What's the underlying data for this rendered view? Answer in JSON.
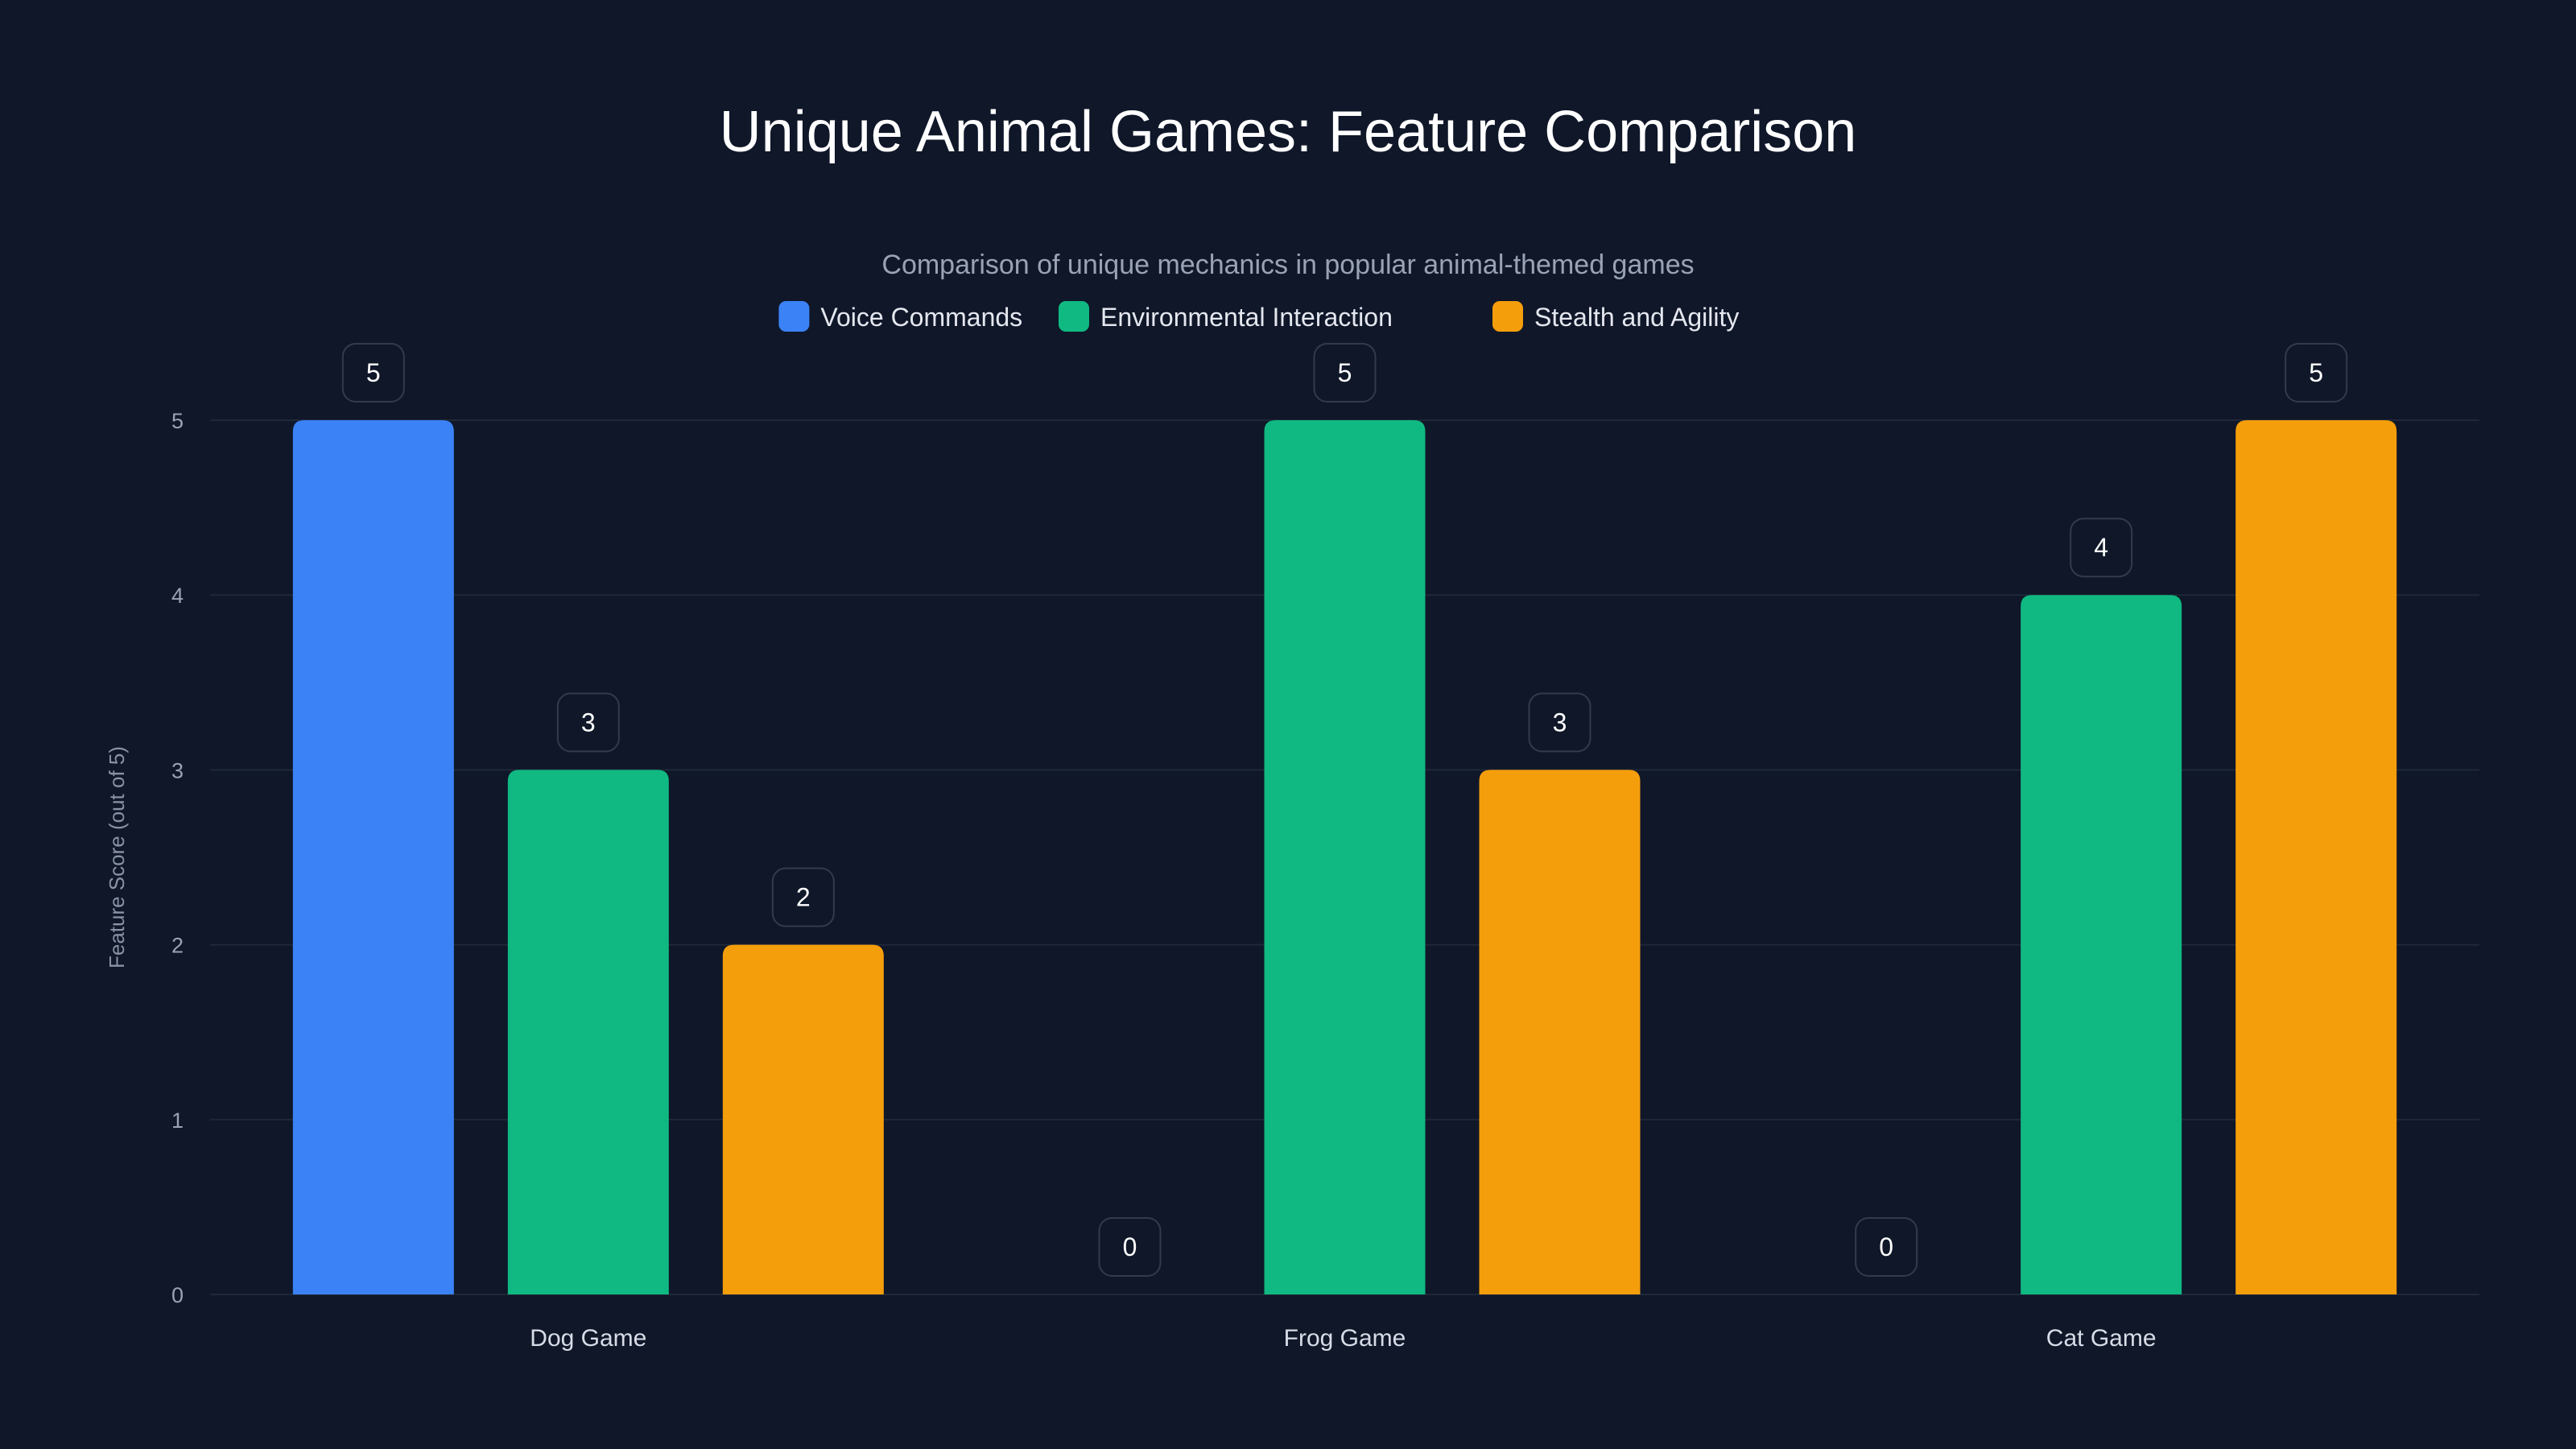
{
  "chart_data": {
    "type": "bar",
    "title": "Unique Animal Games: Feature Comparison",
    "subtitle": "Comparison of unique mechanics in popular animal-themed games",
    "xlabel": "",
    "ylabel": "Feature Score (out of 5)",
    "ylim": [
      0,
      5
    ],
    "yticks": [
      "0",
      "1",
      "2",
      "3",
      "4",
      "5"
    ],
    "grid": true,
    "legend_position": "top-center",
    "categories": [
      "Dog Game",
      "Frog Game",
      "Cat Game"
    ],
    "series": [
      {
        "name": "Voice Commands",
        "color": "#3b82f6",
        "values": [
          5,
          0,
          0
        ]
      },
      {
        "name": "Environmental Interaction",
        "color": "#10b981",
        "values": [
          3,
          5,
          4
        ]
      },
      {
        "name": "Stealth and Agility",
        "color": "#f59e0b",
        "values": [
          2,
          3,
          5
        ]
      }
    ]
  }
}
